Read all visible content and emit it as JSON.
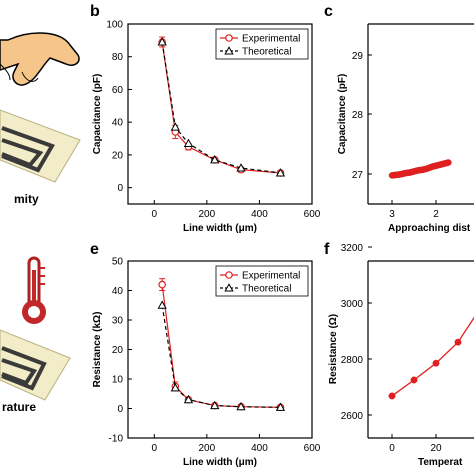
{
  "panels_left": {
    "label_top": "mity",
    "label_bottom": "rature"
  },
  "chart_data": [
    {
      "panel": "b",
      "type": "line",
      "xlabel": "Line width (μm)",
      "ylabel": "Capacitance (pF)",
      "xlim": [
        -100,
        600
      ],
      "ylim": [
        -10,
        100
      ],
      "xticks": [
        0,
        200,
        400,
        600
      ],
      "yticks": [
        0,
        20,
        40,
        60,
        80,
        100
      ],
      "legend": "top-right",
      "series": [
        {
          "name": "Experimental",
          "x": [
            30,
            80,
            130,
            230,
            330,
            480
          ],
          "y": [
            89,
            34,
            25,
            17,
            11,
            9
          ],
          "err": [
            3,
            4,
            2,
            1.5,
            1.5,
            1.5
          ],
          "color": "#e02020",
          "marker": "circle",
          "line": "solid"
        },
        {
          "name": "Theoretical",
          "x": [
            30,
            80,
            130,
            230,
            330,
            480
          ],
          "y": [
            89,
            37,
            27,
            17,
            12,
            9
          ],
          "color": "#000000",
          "marker": "triangle",
          "line": "dashed"
        }
      ]
    },
    {
      "panel": "c",
      "type": "scatter",
      "xlabel": "Approaching dist",
      "ylabel": "Capacitance (pF)",
      "x_reversed": true,
      "xticks": [
        3,
        2
      ],
      "yticks": [
        27,
        28,
        29
      ],
      "series": [
        {
          "x": [
            3.0,
            2.9,
            2.8,
            2.7,
            2.6,
            2.5,
            2.4,
            2.3,
            2.2,
            2.1,
            2.0,
            1.9,
            1.8,
            1.7
          ],
          "y": [
            26.91,
            26.92,
            26.93,
            26.95,
            26.96,
            26.98,
            27.0,
            27.01,
            27.03,
            27.06,
            27.08,
            27.1,
            27.12,
            27.14
          ],
          "color": "#e02020",
          "marker": "circle"
        }
      ]
    },
    {
      "panel": "e",
      "type": "line",
      "xlabel": "Line width (μm)",
      "ylabel": "Resistance (kΩ)",
      "xlim": [
        -100,
        600
      ],
      "ylim": [
        -10,
        50
      ],
      "xticks": [
        0,
        200,
        400,
        600
      ],
      "yticks": [
        -10,
        0,
        10,
        20,
        30,
        40,
        50
      ],
      "legend": "top-right",
      "series": [
        {
          "name": "Experimental",
          "x": [
            30,
            80,
            130,
            230,
            330,
            480
          ],
          "y": [
            42,
            7.5,
            3,
            1,
            0.6,
            0.4
          ],
          "err": [
            2,
            1.5,
            0.5,
            0.4,
            0.3,
            0.3
          ],
          "color": "#e02020",
          "marker": "circle",
          "line": "solid"
        },
        {
          "name": "Theoretical",
          "x": [
            30,
            80,
            130,
            230,
            330,
            480
          ],
          "y": [
            35,
            7,
            3,
            1,
            0.6,
            0.4
          ],
          "color": "#000000",
          "marker": "triangle",
          "line": "dashed"
        }
      ]
    },
    {
      "panel": "f",
      "type": "line",
      "xlabel": "Temperat",
      "ylabel": "Resistance (Ω)",
      "xticks": [
        0,
        20
      ],
      "yticks": [
        2600,
        2800,
        3000,
        3200
      ],
      "series": [
        {
          "x": [
            0,
            10,
            20,
            30,
            40
          ],
          "y": [
            2668,
            2725,
            2785,
            2860,
            2980
          ],
          "color": "#e02020",
          "marker": "circle",
          "line": "solid"
        }
      ]
    }
  ],
  "panel_labels": [
    "b",
    "c",
    "e",
    "f"
  ]
}
